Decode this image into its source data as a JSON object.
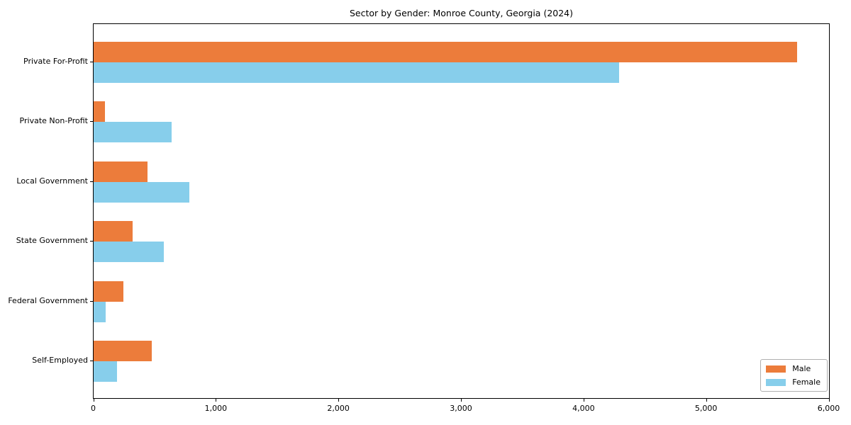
{
  "chart_data": {
    "type": "bar",
    "orientation": "horizontal",
    "title": "Sector by Gender: Monroe County, Georgia (2024)",
    "categories": [
      "Private For-Profit",
      "Private Non-Profit",
      "Local Government",
      "State Government",
      "Federal Government",
      "Self-Employed"
    ],
    "series": [
      {
        "name": "Male",
        "color": "#EC7C3B",
        "values": [
          5740,
          90,
          440,
          320,
          245,
          475
        ]
      },
      {
        "name": "Female",
        "color": "#87CEEB",
        "values": [
          4285,
          635,
          780,
          570,
          100,
          190
        ]
      }
    ],
    "xlabel": "",
    "ylabel": "",
    "xlim": [
      0,
      6000
    ],
    "x_ticks": [
      0,
      1000,
      2000,
      3000,
      4000,
      5000,
      6000
    ],
    "x_tick_labels": [
      "0",
      "1,000",
      "2,000",
      "3,000",
      "4,000",
      "5,000",
      "6,000"
    ],
    "grid": false,
    "legend_position": "lower right",
    "frame_color": "#000000",
    "background_color": "#ffffff"
  }
}
